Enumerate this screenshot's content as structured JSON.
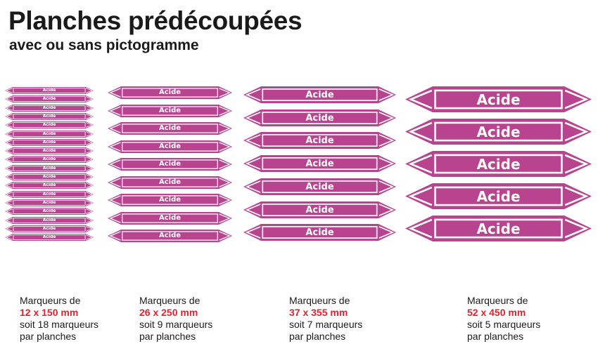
{
  "header": {
    "title": "Planches prédécoupées",
    "subtitle": "avec ou sans pictogramme"
  },
  "colors": {
    "marker_fill": "#b8448f",
    "marker_stroke": "#ffffff",
    "dimension_text": "#e0232d"
  },
  "marker_label": "Acide",
  "sheets": [
    {
      "marker_count": 18,
      "caption_line1": "Marqueurs de",
      "dimension": "12 x 150 mm",
      "caption_line3": "soit 18 marqueurs",
      "caption_line4": "par planches"
    },
    {
      "marker_count": 9,
      "caption_line1": "Marqueurs de",
      "dimension": "26 x 250 mm",
      "caption_line3": "soit 9 marqueurs",
      "caption_line4": "par planches"
    },
    {
      "marker_count": 7,
      "caption_line1": "Marqueurs de",
      "dimension": "37 x 355 mm",
      "caption_line3": "soit 7 marqueurs",
      "caption_line4": "par planches"
    },
    {
      "marker_count": 5,
      "caption_line1": "Marqueurs de",
      "dimension": "52 x 450 mm",
      "caption_line3": "soit 5 marqueurs",
      "caption_line4": "par planches"
    }
  ]
}
